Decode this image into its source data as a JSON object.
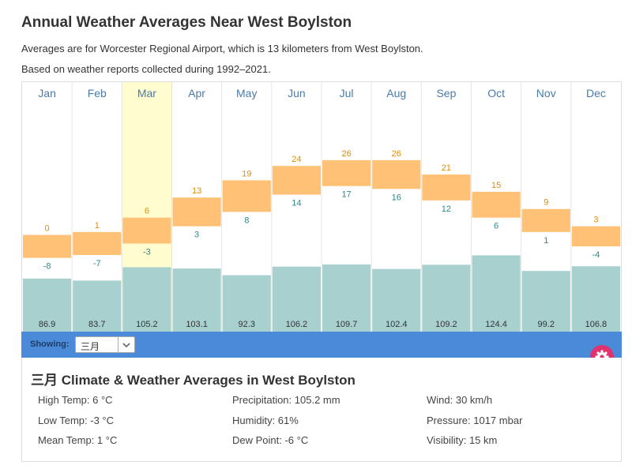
{
  "header": {
    "title": "Annual Weather Averages Near West Boylston",
    "subtitle_1": "Averages are for Worcester Regional Airport, which is 13 kilometers from West Boylston.",
    "subtitle_2": "Based on weather reports collected during 1992–2021."
  },
  "colors": {
    "temp_band": "#ffc175",
    "high_label": "#e28c00",
    "low_label": "#2a8a8a",
    "precip_bar": "#a7d0cf",
    "highlight": "#fffdd0",
    "month_label": "#4a7aaa",
    "toolbar": "#4a8ad9",
    "gear": "#e0326e"
  },
  "chart_data": {
    "type": "bar",
    "categories": [
      "Jan",
      "Feb",
      "Mar",
      "Apr",
      "May",
      "Jun",
      "Jul",
      "Aug",
      "Sep",
      "Oct",
      "Nov",
      "Dec"
    ],
    "highlighted_category": "Mar",
    "series": [
      {
        "name": "High Temp",
        "values": [
          0,
          1,
          6,
          13,
          19,
          24,
          26,
          26,
          21,
          15,
          9,
          3
        ]
      },
      {
        "name": "Low Temp",
        "values": [
          -8,
          -7,
          -3,
          3,
          8,
          14,
          17,
          16,
          12,
          6,
          1,
          -4
        ]
      },
      {
        "name": "Precipitation",
        "values": [
          86.9,
          83.7,
          105.2,
          103.1,
          92.3,
          106.2,
          109.7,
          102.4,
          109.2,
          124.4,
          99.2,
          106.8
        ]
      }
    ],
    "title": "",
    "xlabel": "",
    "ylabel": "",
    "grid": false
  },
  "toolbar": {
    "showing_label": "Showing:",
    "selected_month": "三月",
    "chevron_icon": "chevron-down-icon",
    "gear_icon": "gear-icon"
  },
  "details": {
    "title": "三月 Climate & Weather Averages in West Boylston",
    "col1": [
      "High Temp: 6 °C",
      "Low Temp: -3 °C",
      "Mean Temp: 1 °C"
    ],
    "col2": [
      "Precipitation: 105.2 mm",
      "Humidity: 61%",
      "Dew Point: -6 °C"
    ],
    "col3": [
      "Wind: 30 km/h",
      "Pressure: 1017 mbar",
      "Visibility: 15 km"
    ]
  }
}
